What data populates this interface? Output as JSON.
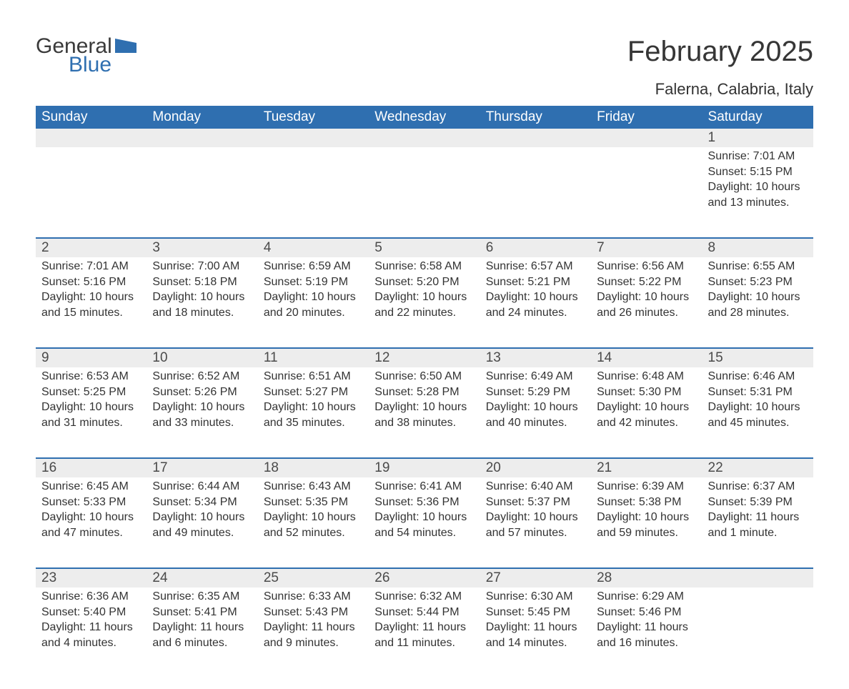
{
  "logo": {
    "text1": "General",
    "text2": "Blue",
    "flag_color": "#2f6fb0"
  },
  "title": "February 2025",
  "location": "Falerna, Calabria, Italy",
  "colors": {
    "header_bg": "#2f6fb0",
    "header_text": "#ffffff",
    "daynum_bg": "#ededed",
    "week_divider": "#2f6fb0",
    "body_text": "#333333",
    "background": "#ffffff"
  },
  "typography": {
    "title_fontsize": 40,
    "subtitle_fontsize": 22,
    "dow_fontsize": 19,
    "daynum_fontsize": 19,
    "body_fontsize": 16,
    "font_family": "Arial"
  },
  "days_of_week": [
    "Sunday",
    "Monday",
    "Tuesday",
    "Wednesday",
    "Thursday",
    "Friday",
    "Saturday"
  ],
  "labels": {
    "sunrise": "Sunrise:",
    "sunset": "Sunset:",
    "daylight": "Daylight:"
  },
  "weeks": [
    [
      null,
      null,
      null,
      null,
      null,
      null,
      {
        "n": "1",
        "sunrise": "7:01 AM",
        "sunset": "5:15 PM",
        "daylight": "10 hours and 13 minutes."
      }
    ],
    [
      {
        "n": "2",
        "sunrise": "7:01 AM",
        "sunset": "5:16 PM",
        "daylight": "10 hours and 15 minutes."
      },
      {
        "n": "3",
        "sunrise": "7:00 AM",
        "sunset": "5:18 PM",
        "daylight": "10 hours and 18 minutes."
      },
      {
        "n": "4",
        "sunrise": "6:59 AM",
        "sunset": "5:19 PM",
        "daylight": "10 hours and 20 minutes."
      },
      {
        "n": "5",
        "sunrise": "6:58 AM",
        "sunset": "5:20 PM",
        "daylight": "10 hours and 22 minutes."
      },
      {
        "n": "6",
        "sunrise": "6:57 AM",
        "sunset": "5:21 PM",
        "daylight": "10 hours and 24 minutes."
      },
      {
        "n": "7",
        "sunrise": "6:56 AM",
        "sunset": "5:22 PM",
        "daylight": "10 hours and 26 minutes."
      },
      {
        "n": "8",
        "sunrise": "6:55 AM",
        "sunset": "5:23 PM",
        "daylight": "10 hours and 28 minutes."
      }
    ],
    [
      {
        "n": "9",
        "sunrise": "6:53 AM",
        "sunset": "5:25 PM",
        "daylight": "10 hours and 31 minutes."
      },
      {
        "n": "10",
        "sunrise": "6:52 AM",
        "sunset": "5:26 PM",
        "daylight": "10 hours and 33 minutes."
      },
      {
        "n": "11",
        "sunrise": "6:51 AM",
        "sunset": "5:27 PM",
        "daylight": "10 hours and 35 minutes."
      },
      {
        "n": "12",
        "sunrise": "6:50 AM",
        "sunset": "5:28 PM",
        "daylight": "10 hours and 38 minutes."
      },
      {
        "n": "13",
        "sunrise": "6:49 AM",
        "sunset": "5:29 PM",
        "daylight": "10 hours and 40 minutes."
      },
      {
        "n": "14",
        "sunrise": "6:48 AM",
        "sunset": "5:30 PM",
        "daylight": "10 hours and 42 minutes."
      },
      {
        "n": "15",
        "sunrise": "6:46 AM",
        "sunset": "5:31 PM",
        "daylight": "10 hours and 45 minutes."
      }
    ],
    [
      {
        "n": "16",
        "sunrise": "6:45 AM",
        "sunset": "5:33 PM",
        "daylight": "10 hours and 47 minutes."
      },
      {
        "n": "17",
        "sunrise": "6:44 AM",
        "sunset": "5:34 PM",
        "daylight": "10 hours and 49 minutes."
      },
      {
        "n": "18",
        "sunrise": "6:43 AM",
        "sunset": "5:35 PM",
        "daylight": "10 hours and 52 minutes."
      },
      {
        "n": "19",
        "sunrise": "6:41 AM",
        "sunset": "5:36 PM",
        "daylight": "10 hours and 54 minutes."
      },
      {
        "n": "20",
        "sunrise": "6:40 AM",
        "sunset": "5:37 PM",
        "daylight": "10 hours and 57 minutes."
      },
      {
        "n": "21",
        "sunrise": "6:39 AM",
        "sunset": "5:38 PM",
        "daylight": "10 hours and 59 minutes."
      },
      {
        "n": "22",
        "sunrise": "6:37 AM",
        "sunset": "5:39 PM",
        "daylight": "11 hours and 1 minute."
      }
    ],
    [
      {
        "n": "23",
        "sunrise": "6:36 AM",
        "sunset": "5:40 PM",
        "daylight": "11 hours and 4 minutes."
      },
      {
        "n": "24",
        "sunrise": "6:35 AM",
        "sunset": "5:41 PM",
        "daylight": "11 hours and 6 minutes."
      },
      {
        "n": "25",
        "sunrise": "6:33 AM",
        "sunset": "5:43 PM",
        "daylight": "11 hours and 9 minutes."
      },
      {
        "n": "26",
        "sunrise": "6:32 AM",
        "sunset": "5:44 PM",
        "daylight": "11 hours and 11 minutes."
      },
      {
        "n": "27",
        "sunrise": "6:30 AM",
        "sunset": "5:45 PM",
        "daylight": "11 hours and 14 minutes."
      },
      {
        "n": "28",
        "sunrise": "6:29 AM",
        "sunset": "5:46 PM",
        "daylight": "11 hours and 16 minutes."
      },
      null
    ]
  ]
}
